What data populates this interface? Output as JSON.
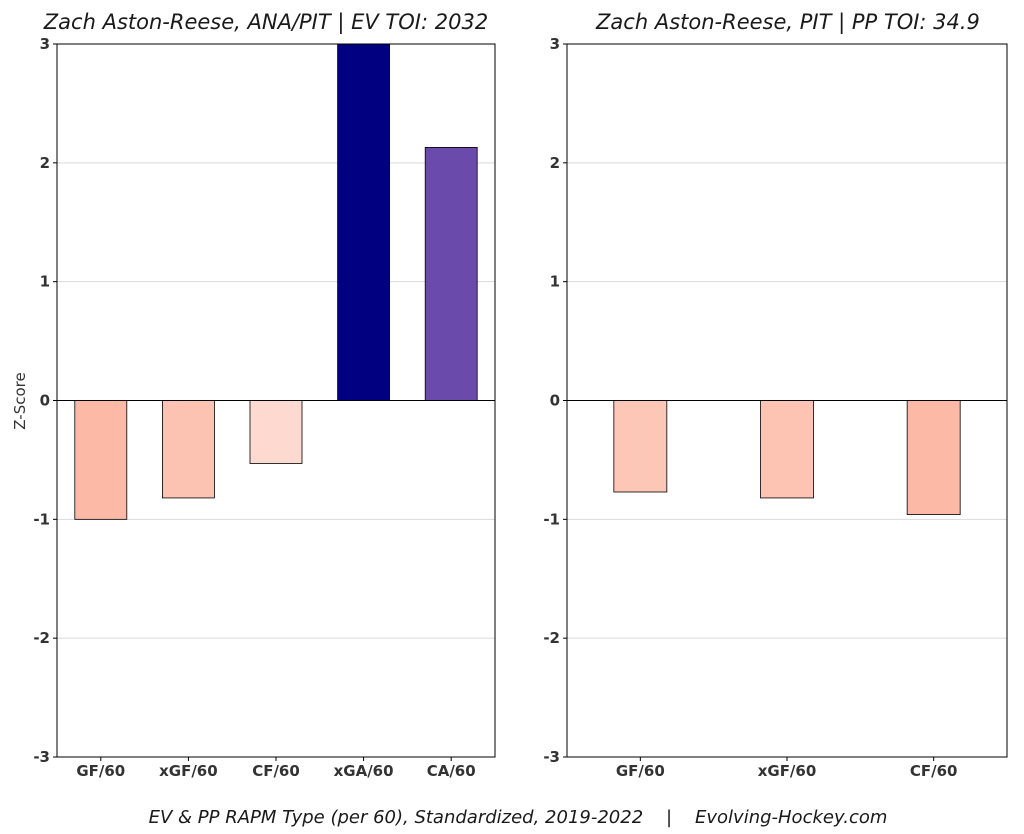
{
  "chart_data": [
    {
      "type": "bar",
      "title": "Zach Aston-Reese, ANA/PIT  |  EV TOI: 2032",
      "ylabel": "Z-Score",
      "xlabel": "",
      "ylim": [
        -3,
        3
      ],
      "yticks": [
        -3,
        -2,
        -1,
        0,
        1,
        2,
        3
      ],
      "grid": true,
      "categories": [
        "GF/60",
        "xGF/60",
        "CF/60",
        "xGA/60",
        "CA/60"
      ],
      "values": [
        -1.0,
        -0.82,
        -0.53,
        3.0,
        2.13
      ],
      "colors": [
        "#fcb9a5",
        "#fcc2b2",
        "#fed9cf",
        "#000080",
        "#6a4aaa"
      ]
    },
    {
      "type": "bar",
      "title": "Zach Aston-Reese, PIT  |  PP TOI: 34.9",
      "ylabel": "",
      "xlabel": "",
      "ylim": [
        -3,
        3
      ],
      "yticks": [
        -3,
        -2,
        -1,
        0,
        1,
        2,
        3
      ],
      "grid": true,
      "categories": [
        "GF/60",
        "xGF/60",
        "CF/60"
      ],
      "values": [
        -0.77,
        -0.82,
        -0.96
      ],
      "colors": [
        "#fdc7b8",
        "#fdc4b4",
        "#fcb9a6"
      ]
    }
  ],
  "caption": "EV & PP RAPM Type (per 60), Standardized, 2019-2022    |    Evolving-Hockey.com"
}
